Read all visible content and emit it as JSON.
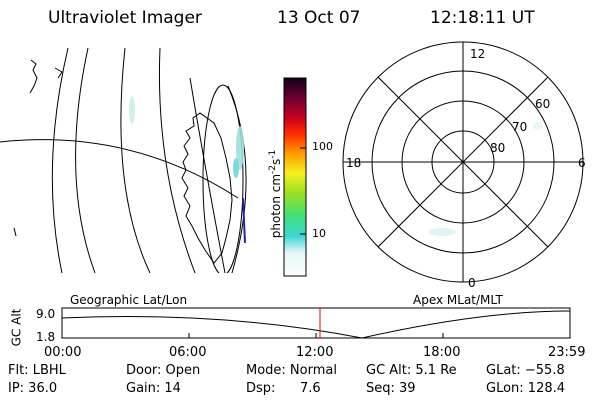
{
  "header": {
    "instrument": "Ultraviolet Imager",
    "date": "13 Oct 07",
    "time": "12:18:11 UT"
  },
  "colorbar": {
    "unit": "photon cm",
    "unit_exp1": "-2",
    "unit_s": "s",
    "unit_exp2": "-1",
    "scale": "log",
    "ticks": [
      "100",
      "10"
    ]
  },
  "polar_plot": {
    "mlt_labels": {
      "top": "12",
      "left": "18",
      "right": "6",
      "bottom": "0"
    },
    "lat_labels": [
      "60",
      "70",
      "80"
    ]
  },
  "panel_labels": {
    "left": "Geographic Lat/Lon",
    "right": "Apex MLat/MLT"
  },
  "altitude_plot": {
    "ylabel": "GC Alt",
    "yticks": [
      "9.0",
      "1.8"
    ],
    "xticks": [
      "00:00",
      "06:00",
      "12:00",
      "18:00",
      "23:59"
    ],
    "marker_color": "#ff0000"
  },
  "info": {
    "row1": {
      "filter": "Flt: LBHL",
      "door": "Door: Open",
      "mode": "Mode: Normal",
      "gc_alt": "GC Alt: 5.1 Re",
      "glat": "GLat: −55.8"
    },
    "row2": {
      "ip": "IP: 36.0",
      "gain": "Gain: 14",
      "dsp_label": "Dsp:",
      "dsp_value": "7.6",
      "seq": "Seq: 39",
      "glon": "GLon: 128.4"
    }
  }
}
